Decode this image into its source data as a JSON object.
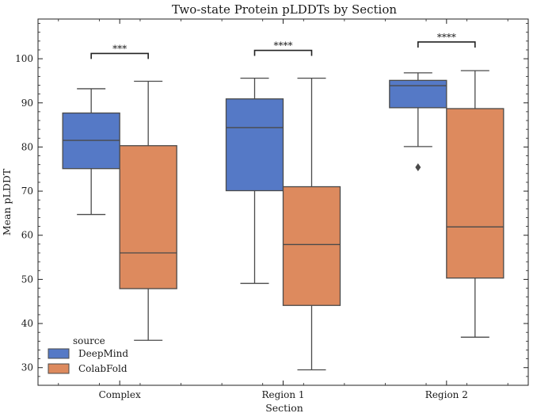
{
  "chart_data": {
    "type": "box",
    "title": "Two-state Protein pLDDTs by Section",
    "xlabel": "Section",
    "ylabel": "Mean pLDDT",
    "categories": [
      "Complex",
      "Region 1",
      "Region 2"
    ],
    "ylim": [
      26,
      109
    ],
    "yticks": [
      30,
      40,
      50,
      60,
      70,
      80,
      90,
      100
    ],
    "grid": false,
    "legend": {
      "title": "source",
      "position": "bottom-left"
    },
    "series": [
      {
        "name": "DeepMind",
        "color": "#5579c6",
        "boxes": [
          {
            "whisker_low": 64.7,
            "q1": 75.1,
            "median": 81.5,
            "q3": 87.7,
            "whisker_high": 93.2,
            "outliers": []
          },
          {
            "whisker_low": 49.1,
            "q1": 70.1,
            "median": 84.4,
            "q3": 90.9,
            "whisker_high": 95.6,
            "outliers": []
          },
          {
            "whisker_low": 80.1,
            "q1": 88.9,
            "median": 93.9,
            "q3": 95.1,
            "whisker_high": 96.8,
            "outliers": [
              75.4
            ]
          }
        ]
      },
      {
        "name": "ColabFold",
        "color": "#dd8a5e",
        "boxes": [
          {
            "whisker_low": 36.2,
            "q1": 47.9,
            "median": 56.0,
            "q3": 80.3,
            "whisker_high": 94.9,
            "outliers": []
          },
          {
            "whisker_low": 29.5,
            "q1": 44.1,
            "median": 57.9,
            "q3": 71.0,
            "whisker_high": 95.6,
            "outliers": []
          },
          {
            "whisker_low": 36.9,
            "q1": 50.3,
            "median": 61.9,
            "q3": 88.7,
            "whisker_high": 97.3,
            "outliers": []
          }
        ]
      }
    ],
    "annotations": [
      {
        "category": "Complex",
        "label": "***",
        "y": 101.2
      },
      {
        "category": "Region 1",
        "label": "****",
        "y": 101.9
      },
      {
        "category": "Region 2",
        "label": "****",
        "y": 103.8
      }
    ]
  }
}
